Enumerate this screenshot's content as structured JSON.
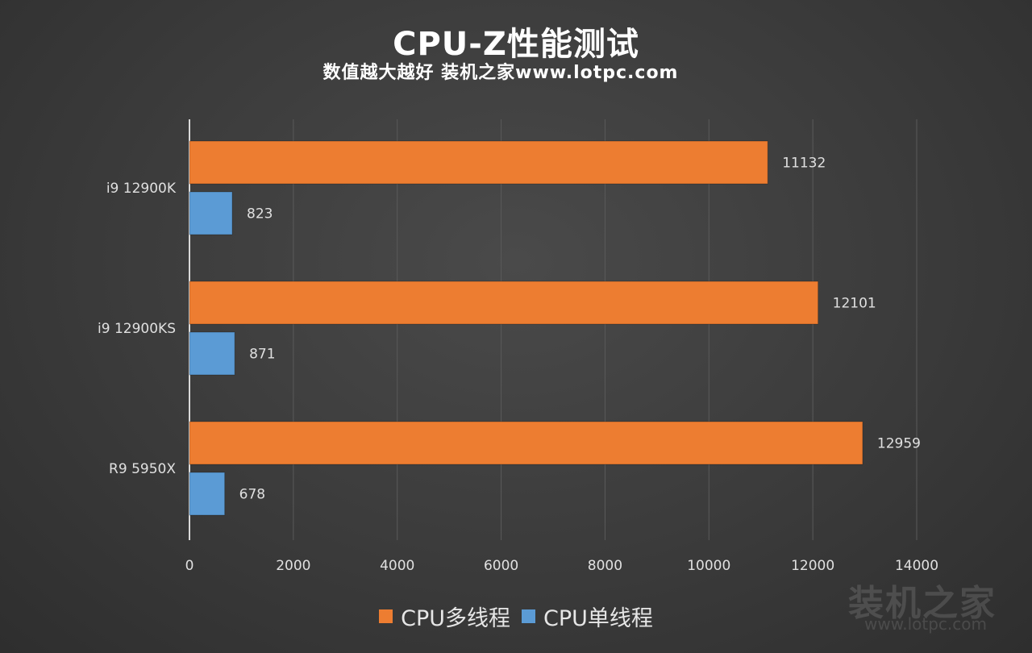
{
  "title": "CPU-Z性能测试",
  "subtitle": "数值越大越好 装机之家www.lotpc.com",
  "watermark": {
    "text": "装机之家",
    "url": "www.lotpc.com"
  },
  "colors": {
    "multi": "#ed7d31",
    "single": "#5b9bd5",
    "grid": "#5a5a5a",
    "axis": "#d9d9d9",
    "text": "#e0e0e0"
  },
  "chart_data": {
    "type": "bar",
    "orientation": "horizontal",
    "categories": [
      "i9 12900K",
      "i9 12900KS",
      "R9 5950X"
    ],
    "series": [
      {
        "name": "CPU多线程",
        "values": [
          11132,
          12101,
          12959
        ]
      },
      {
        "name": "CPU单线程",
        "values": [
          823,
          871,
          678
        ]
      }
    ],
    "xlim": [
      0,
      14000
    ],
    "xticks": [
      0,
      2000,
      4000,
      6000,
      8000,
      10000,
      12000,
      14000
    ],
    "grid": true,
    "legend_position": "bottom"
  }
}
